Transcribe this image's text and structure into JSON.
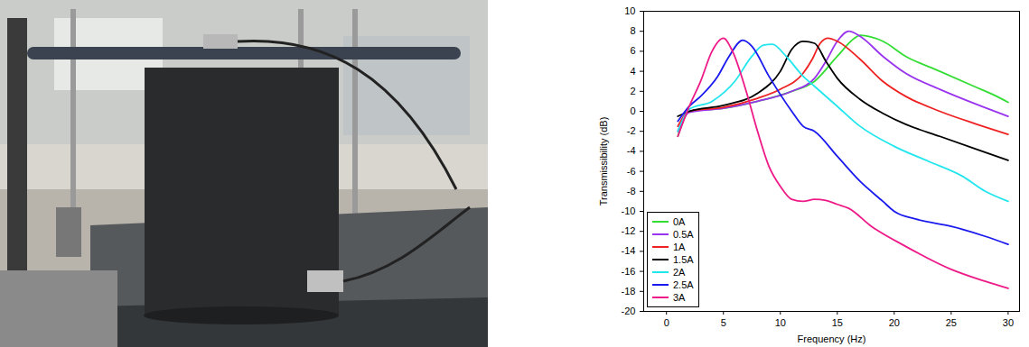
{
  "chart_data": {
    "type": "line",
    "xlabel": "Frequency (Hz)",
    "ylabel": "Transmissibility (dB)",
    "xlim": [
      -2,
      31
    ],
    "xticks": [
      0,
      5,
      10,
      15,
      20,
      25,
      30
    ],
    "ylim": [
      -20,
      10
    ],
    "yticks": [
      -20,
      -18,
      -16,
      -14,
      -12,
      -10,
      -8,
      -6,
      -4,
      -2,
      0,
      2,
      4,
      6,
      8,
      10
    ],
    "grid": false,
    "legend": "lower left",
    "series": [
      {
        "name": "0A",
        "color": "#33dd33",
        "x": [
          1,
          2,
          5,
          8,
          11,
          13,
          15,
          16.5,
          17,
          19,
          21,
          24,
          27,
          29,
          30
        ],
        "values": [
          -2.5,
          0,
          0.3,
          1,
          2,
          3,
          5.5,
          7.3,
          7.6,
          7,
          5.5,
          4,
          2.5,
          1.5,
          0.9
        ]
      },
      {
        "name": "0.5A",
        "color": "#9933ee",
        "x": [
          1,
          2,
          5,
          8,
          11,
          13,
          14,
          15,
          16,
          17,
          19,
          21,
          24,
          27,
          30
        ],
        "values": [
          -2,
          -0.1,
          0.3,
          1,
          2,
          3.3,
          5,
          7,
          8,
          7.5,
          5.5,
          3.8,
          2.2,
          0.8,
          -0.5
        ]
      },
      {
        "name": "1A",
        "color": "#ee2222",
        "x": [
          1,
          2,
          5,
          8,
          10,
          12,
          12.8,
          13.5,
          14.2,
          15,
          17,
          19,
          21,
          24,
          27,
          30
        ],
        "values": [
          -1.5,
          0,
          0.4,
          1.3,
          2.2,
          3.8,
          5.2,
          6.8,
          7.3,
          7,
          5.2,
          3,
          1.5,
          0,
          -1.2,
          -2.3
        ]
      },
      {
        "name": "1.5A",
        "color": "#000000",
        "x": [
          1,
          2,
          5,
          8,
          10,
          11,
          12,
          13,
          14,
          15,
          17,
          19,
          21,
          24,
          27,
          30
        ],
        "values": [
          -0.5,
          0,
          0.6,
          1.8,
          4,
          6.2,
          7,
          6.8,
          5,
          3.3,
          1.2,
          -0.2,
          -1.3,
          -2.5,
          -3.7,
          -4.9
        ]
      },
      {
        "name": "2A",
        "color": "#22e6ee",
        "x": [
          1,
          2,
          4,
          6,
          7.5,
          8.5,
          9.3,
          10.5,
          12,
          13,
          15,
          17,
          20,
          23,
          26,
          28,
          30
        ],
        "values": [
          -2,
          0.2,
          1,
          3,
          5.5,
          6.6,
          6.7,
          5.5,
          3.5,
          2.5,
          0.5,
          -1.5,
          -3.5,
          -5,
          -6.5,
          -8,
          -9
        ]
      },
      {
        "name": "2.5A",
        "color": "#1a1aee",
        "x": [
          1,
          2,
          3,
          4.5,
          5.5,
          6.7,
          7.5,
          9,
          11,
          12,
          13,
          15,
          17,
          19,
          20,
          22,
          25,
          28,
          30
        ],
        "values": [
          -1,
          0.5,
          1.5,
          3.5,
          5.5,
          7.1,
          6.5,
          3.5,
          0,
          -1.5,
          -2,
          -4.5,
          -7,
          -9,
          -10,
          -10.8,
          -11.5,
          -12.5,
          -13.3
        ]
      },
      {
        "name": "3A",
        "color": "#ee1a88",
        "x": [
          1,
          2,
          3,
          4,
          5,
          5.8,
          7,
          8,
          9,
          10,
          11,
          12,
          13,
          14,
          15,
          16,
          18,
          21,
          25,
          28,
          30
        ],
        "values": [
          -2.5,
          0.5,
          3,
          6,
          7.3,
          6,
          2,
          -2,
          -5.5,
          -7.5,
          -8.8,
          -9,
          -8.8,
          -8.9,
          -9.3,
          -9.7,
          -11.5,
          -13.5,
          -15.8,
          -17,
          -17.7
        ]
      }
    ]
  }
}
